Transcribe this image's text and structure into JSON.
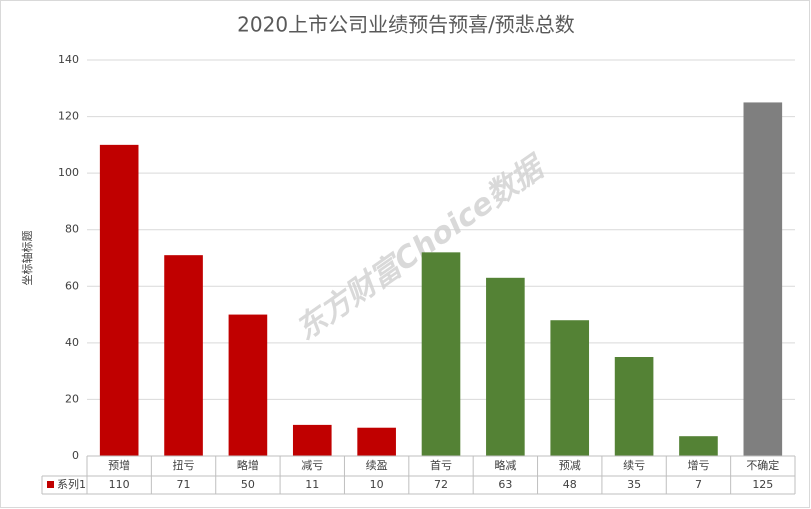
{
  "chart_data": {
    "type": "bar",
    "title": "2020上市公司业绩预告预喜/预悲总数",
    "y_label": "坐标轴标题",
    "watermark": "东方财富Choice数据",
    "categories": [
      "预增",
      "扭亏",
      "略增",
      "减亏",
      "续盈",
      "首亏",
      "略减",
      "预减",
      "续亏",
      "增亏",
      "不确定"
    ],
    "series": [
      {
        "name": "系列1",
        "color": "#c00000",
        "values": [
          110,
          71,
          50,
          11,
          10,
          72,
          63,
          48,
          35,
          7,
          125
        ],
        "point_colors": [
          "#c00000",
          "#c00000",
          "#c00000",
          "#c00000",
          "#c00000",
          "#548235",
          "#548235",
          "#548235",
          "#548235",
          "#548235",
          "#7f7f7f"
        ]
      }
    ],
    "ylim": [
      0,
      140
    ],
    "yticks": [
      0,
      20,
      40,
      60,
      80,
      100,
      120,
      140
    ],
    "grid": true,
    "data_table": true
  }
}
